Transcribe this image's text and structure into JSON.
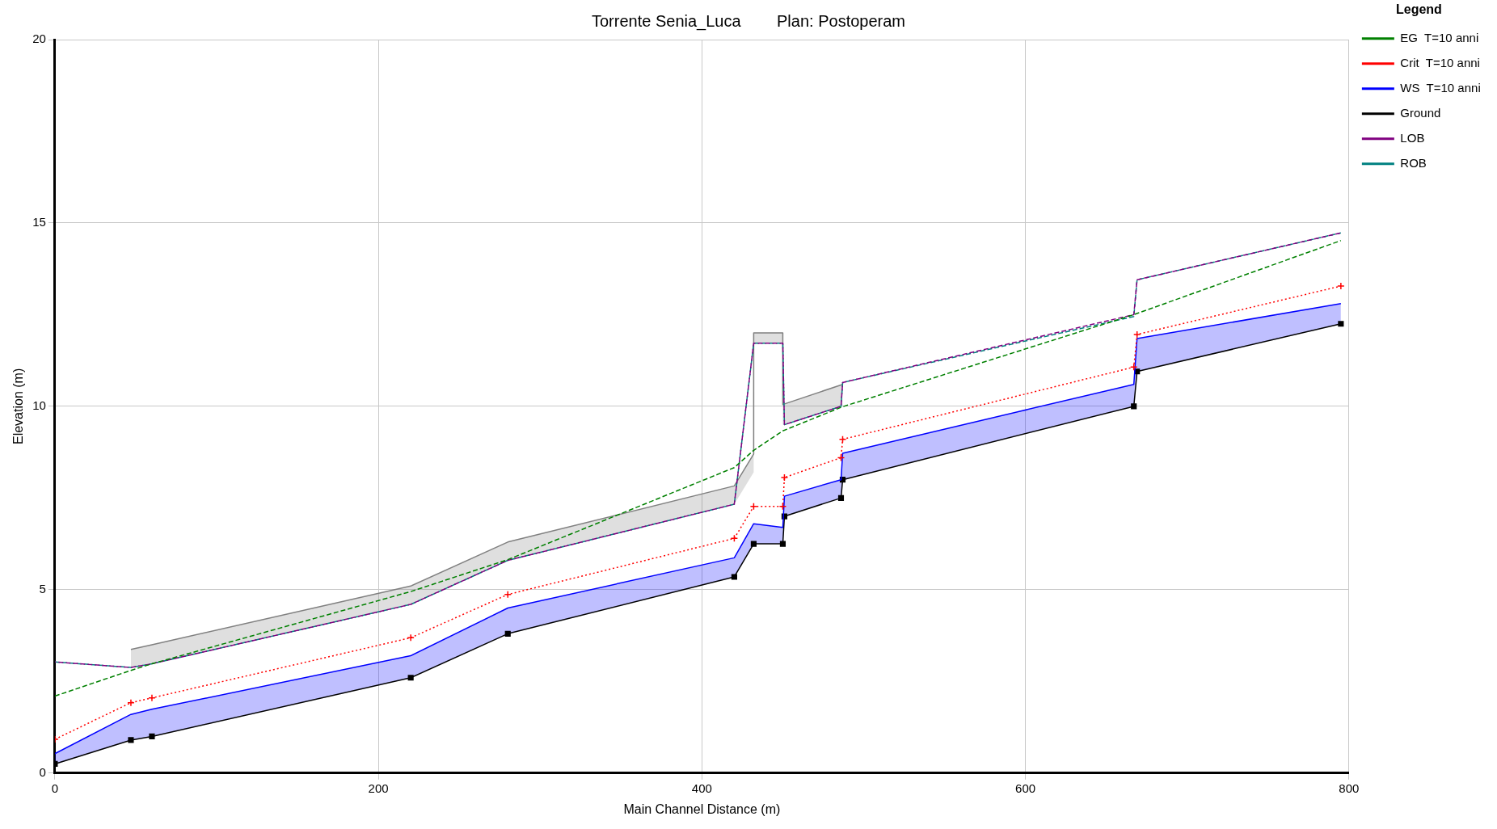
{
  "chart_data": {
    "type": "line",
    "title": "Torrente Senia_Luca        Plan: Postoperam",
    "xlabel": "Main Channel Distance (m)",
    "ylabel": "Elevation (m)",
    "legend_title": "Legend",
    "legend": "right",
    "grid": true,
    "xlim": [
      0,
      800
    ],
    "xticks": [
      0,
      200,
      400,
      600,
      800
    ],
    "ylim": [
      0,
      20
    ],
    "yticks": [
      0,
      5,
      10,
      15,
      20
    ],
    "series": [
      {
        "name": "EG  T=10 anni",
        "color": "#008000",
        "line_style": "dashed",
        "marker": "none",
        "x": [
          0,
          47,
          60,
          220,
          280,
          420,
          432,
          450,
          487,
          667,
          795
        ],
        "values": [
          2.1,
          2.8,
          2.98,
          4.95,
          5.82,
          8.33,
          8.8,
          9.33,
          9.99,
          12.5,
          14.52
        ]
      },
      {
        "name": "Crit  T=10 anni",
        "color": "#ff0000",
        "line_style": "dotted",
        "marker": "cross",
        "x": [
          0,
          47,
          60,
          220,
          280,
          420,
          432,
          450,
          451,
          486,
          487,
          667,
          669,
          795
        ],
        "values": [
          0.92,
          1.92,
          2.05,
          3.69,
          4.87,
          6.4,
          7.27,
          7.27,
          8.06,
          8.6,
          9.1,
          11.07,
          11.96,
          13.28
        ]
      },
      {
        "name": "WS  T=10 anni",
        "color": "#0000ff",
        "line_style": "solid",
        "marker": "none",
        "x": [
          0,
          47,
          60,
          220,
          280,
          420,
          432,
          450,
          451,
          486,
          487,
          667,
          669,
          795
        ],
        "values": [
          0.53,
          1.6,
          1.74,
          3.2,
          4.5,
          5.87,
          6.8,
          6.7,
          7.55,
          8.0,
          8.72,
          10.6,
          11.85,
          12.8
        ],
        "lower": [
          0.25,
          0.9,
          1.0,
          2.6,
          3.8,
          5.35,
          6.25,
          6.25,
          7.0,
          7.5,
          8.0,
          10.0,
          10.95,
          12.25
        ],
        "upper": [
          0.53,
          1.6,
          1.74,
          3.2,
          4.5,
          5.87,
          6.8,
          6.7,
          7.55,
          8.0,
          8.72,
          10.6,
          11.85,
          12.8
        ]
      },
      {
        "name": "Ground",
        "color": "#000000",
        "line_style": "solid",
        "marker": "square",
        "x": [
          0,
          47,
          60,
          220,
          280,
          420,
          432,
          450,
          451,
          486,
          487,
          667,
          669,
          795
        ],
        "values": [
          0.25,
          0.9,
          1.0,
          2.6,
          3.8,
          5.35,
          6.25,
          6.25,
          7.0,
          7.5,
          8.0,
          10.0,
          10.95,
          12.25
        ]
      },
      {
        "name": "LOB",
        "color": "#800080",
        "line_style": "dashed",
        "marker": "none",
        "x": [
          0,
          47,
          60,
          220,
          280,
          420,
          432,
          450,
          451,
          486,
          487,
          667,
          669,
          795
        ],
        "values": [
          3.03,
          2.88,
          2.98,
          4.6,
          5.8,
          7.33,
          11.72,
          11.72,
          9.5,
          10.0,
          10.65,
          12.5,
          13.45,
          14.73
        ]
      },
      {
        "name": "ROB",
        "color": "#008080",
        "line_style": "dashed",
        "marker": "none",
        "x": [
          0,
          47,
          60,
          220,
          280,
          420,
          432,
          450,
          451,
          486,
          487,
          667,
          669,
          795
        ],
        "values": [
          3.03,
          2.88,
          2.98,
          4.6,
          5.8,
          7.33,
          11.72,
          11.72,
          9.5,
          10.0,
          10.65,
          12.45,
          13.45,
          14.73
        ]
      },
      {
        "color": "#808080",
        "line_style": "solid",
        "marker": "none",
        "x": [
          47,
          60,
          220,
          280,
          420,
          432,
          432,
          450,
          450,
          487
        ],
        "values": [
          3.37,
          3.5,
          5.1,
          6.3,
          7.83,
          8.7,
          12.0,
          12.0,
          10.05,
          10.6
        ],
        "upper": [
          3.37,
          3.5,
          5.1,
          6.3,
          7.83,
          8.7,
          12.0,
          12.0,
          10.05,
          10.6
        ],
        "lower": [
          2.88,
          2.98,
          4.6,
          5.8,
          7.33,
          8.2,
          11.72,
          11.72,
          9.5,
          10.0
        ]
      }
    ]
  }
}
